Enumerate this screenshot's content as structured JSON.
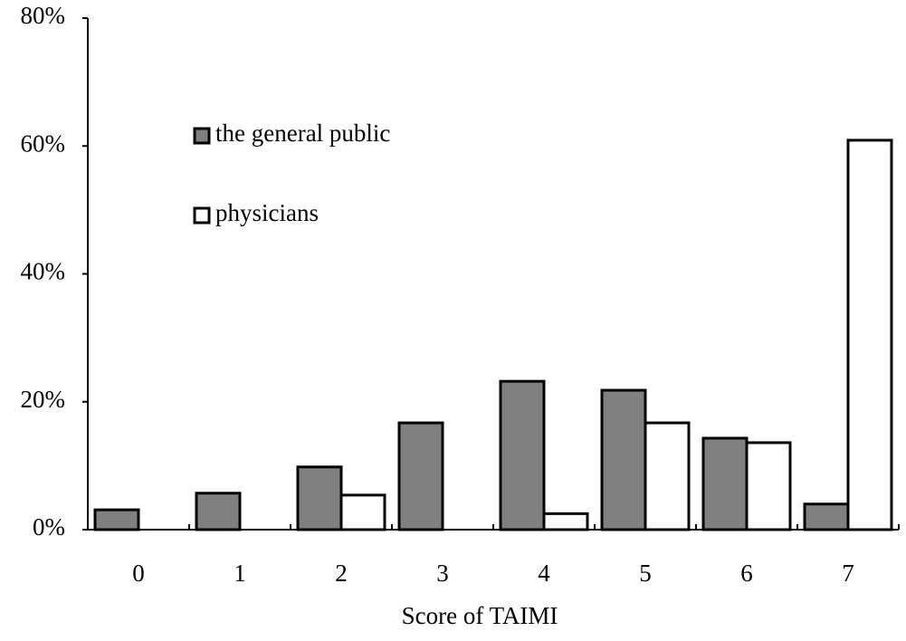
{
  "chart_data": {
    "type": "bar",
    "categories": [
      "0",
      "1",
      "2",
      "3",
      "4",
      "5",
      "6",
      "7"
    ],
    "series": [
      {
        "name": "the general public",
        "color": "#808080",
        "values": [
          3.1,
          5.7,
          9.8,
          16.7,
          23.2,
          21.8,
          14.3,
          4.0
        ]
      },
      {
        "name": "physicians",
        "color": "#ffffff",
        "values": [
          0,
          0,
          5.4,
          0,
          2.5,
          16.7,
          13.6,
          60.9
        ]
      }
    ],
    "xlabel": "Score of TAIMI",
    "ylim": [
      0,
      80
    ],
    "yticks": [
      {
        "value": 0,
        "label": "0%"
      },
      {
        "value": 20,
        "label": "20%"
      },
      {
        "value": 40,
        "label": "40%"
      },
      {
        "value": 60,
        "label": "60%"
      },
      {
        "value": 80,
        "label": "80%"
      }
    ],
    "legend": "upper left",
    "grid": false
  }
}
